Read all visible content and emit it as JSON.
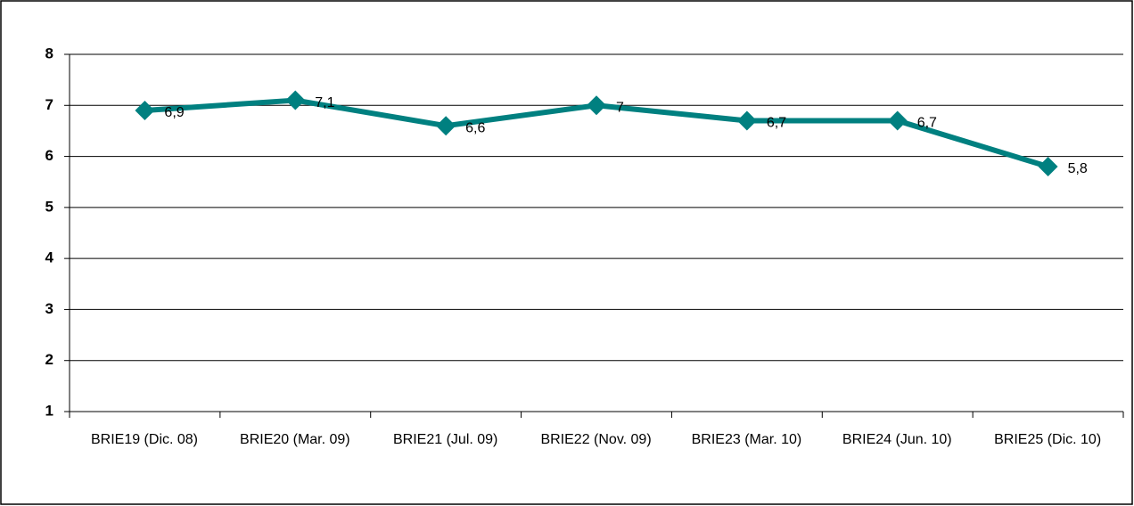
{
  "chart_data": {
    "type": "line",
    "categories": [
      "BRIE19 (Dic. 08)",
      "BRIE20 (Mar. 09)",
      "BRIE21 (Jul. 09)",
      "BRIE22 (Nov. 09)",
      "BRIE23 (Mar. 10)",
      "BRIE24 (Jun. 10)",
      "BRIE25 (Dic. 10)"
    ],
    "series": [
      {
        "color": "#008080",
        "values": [
          6.9,
          7.1,
          6.6,
          7,
          6.7,
          6.7,
          5.8
        ],
        "value_labels": [
          "6,9",
          "7,1",
          "6,6",
          "7",
          "6,7",
          "6,7",
          "5,8"
        ]
      }
    ],
    "ylim": [
      1,
      8
    ],
    "yticks": [
      1,
      2,
      3,
      4,
      5,
      6,
      7,
      8
    ],
    "grid": true
  }
}
